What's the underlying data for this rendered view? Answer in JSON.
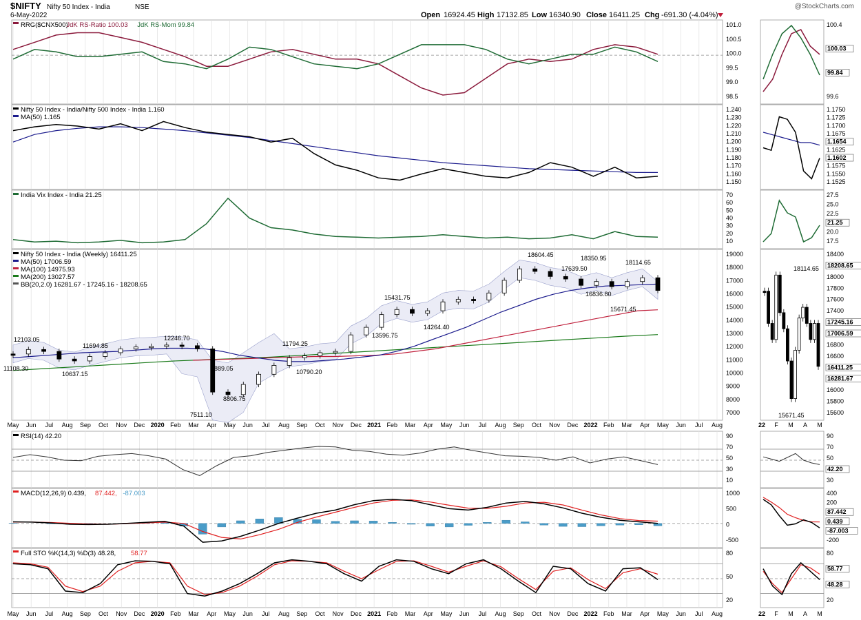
{
  "header": {
    "symbol": "$NIFTY",
    "name": "Nifty 50 Index - India",
    "exchange": "NSE",
    "date": "6-May-2022",
    "watermark": "@StockCharts.com",
    "open_label": "Open",
    "open": "16924.45",
    "high_label": "High",
    "high": "17132.85",
    "low_label": "Low",
    "low": "16340.90",
    "close_label": "Close",
    "close": "16411.25",
    "chg_label": "Chg",
    "chg": "-691.30 (-4.04%)"
  },
  "colors": {
    "price_up": "#000000",
    "ma50": "#1a1a8c",
    "ma100": "#c0203c",
    "ma200": "#1a7a1a",
    "bb": "#9aa0cc",
    "bb_fill": "#ebecf6",
    "rrg_ratio": "#8b1a3c",
    "rrg_mom": "#1e6b34",
    "vix": "#1e6b34",
    "rsi": "#333333",
    "macd_hist": "#4a9cc8",
    "signal": "#e02020"
  },
  "x_axis": {
    "main": [
      "May",
      "Jun",
      "Jul",
      "Aug",
      "Sep",
      "Oct",
      "Nov",
      "Dec",
      "2020",
      "Feb",
      "Mar",
      "Apr",
      "May",
      "Jun",
      "Jul",
      "Aug",
      "Sep",
      "Oct",
      "Nov",
      "Dec",
      "2021",
      "Feb",
      "Mar",
      "Apr",
      "May",
      "Jun",
      "Jul",
      "Aug",
      "Sep",
      "Oct",
      "Nov",
      "Dec",
      "2022",
      "Feb",
      "Mar",
      "Apr",
      "May",
      "Jun",
      "Jul",
      "Aug"
    ],
    "side": [
      "22",
      "F",
      "M",
      "A",
      "M"
    ]
  },
  "panels": {
    "rrg": {
      "legend": [
        "RRG($CNX500)",
        "JdK RS-Ratio 100.03",
        "JdK RS-Mom 99.84"
      ],
      "ticks": [
        "101.0",
        "100.5",
        "100.0",
        "99.5",
        "99.0",
        "98.5"
      ],
      "side_ticks": [
        "100.4",
        "100.03",
        "99.84",
        "99.6"
      ]
    },
    "ratio": {
      "legend": [
        "Nifty 50 Index - India/Nifty 500 Index - India 1.160",
        "MA(50) 1.165"
      ],
      "ticks": [
        "1.240",
        "1.230",
        "1.220",
        "1.210",
        "1.200",
        "1.190",
        "1.180",
        "1.170",
        "1.160",
        "1.150"
      ],
      "side_ticks": [
        "1.1750",
        "1.1725",
        "1.1700",
        "1.1675",
        "1.1654",
        "1.1625",
        "1.1602",
        "1.1575",
        "1.1550",
        "1.1525"
      ]
    },
    "vix": {
      "legend": [
        "India Vix Index - India 21.25"
      ],
      "ticks": [
        "70",
        "60",
        "50",
        "40",
        "30",
        "20",
        "10"
      ],
      "side_ticks": [
        "27.5",
        "25.0",
        "22.5",
        "21.25",
        "20.0",
        "17.5"
      ]
    },
    "price": {
      "legend": [
        "Nifty 50 Index - India (Weekly) 16411.25",
        "MA(50) 17006.59",
        "MA(100) 14975.93",
        "MA(200) 13027.57",
        "BB(20,2.0) 16281.67 - 17245.16 - 18208.65"
      ],
      "ticks": [
        "19000",
        "18000",
        "17000",
        "16000",
        "15000",
        "14000",
        "13000",
        "12000",
        "11000",
        "10000",
        "9000",
        "8000",
        "7000"
      ],
      "side_ticks": [
        "18400",
        "18208.65",
        "18000",
        "17800",
        "17600",
        "17400",
        "17245.16",
        "17006.59",
        "16800",
        "16600",
        "16411.25",
        "16281.67",
        "16000",
        "15800",
        "15600"
      ],
      "annotations": [
        "12103.05",
        "11108.30",
        "10637.15",
        "11694.85",
        "12246.70",
        "9889.05",
        "8806.75",
        "7511.10",
        "11794.25",
        "10790.20",
        "15431.75",
        "13596.75",
        "14264.40",
        "18604.45",
        "17639.50",
        "18350.95",
        "16836.80",
        "18114.65",
        "15671.45"
      ],
      "side_annotations": [
        "18114.65",
        "15671.45"
      ]
    },
    "rsi": {
      "legend": [
        "RSI(14) 42.20"
      ],
      "ticks": [
        "90",
        "70",
        "50",
        "30",
        "10"
      ],
      "side_ticks": [
        "90",
        "70",
        "50",
        "42.20",
        "30"
      ]
    },
    "macd": {
      "legend": [
        "MACD(12,26,9) 0.439,",
        "87.442,",
        "-87.003"
      ],
      "ticks": [
        "1000",
        "500",
        "0",
        "-500"
      ],
      "side_ticks": [
        "400",
        "200",
        "87.442",
        "0.439",
        "-87.003",
        "-200"
      ]
    },
    "sto": {
      "legend": [
        "Full STO %K(14,3) %D(3) 48.28,",
        "58.77"
      ],
      "ticks": [
        "80",
        "50",
        "20"
      ],
      "side_ticks": [
        "80",
        "58.77",
        "48.28",
        "20"
      ]
    }
  },
  "chart_data": [
    {
      "type": "line",
      "title": "RRG($CNX500)",
      "series": [
        {
          "name": "JdK RS-Ratio",
          "values": [
            100.3,
            100.6,
            100.9,
            101.0,
            101.0,
            100.8,
            100.6,
            100.3,
            100.0,
            99.6,
            99.6,
            99.9,
            100.2,
            100.3,
            100.1,
            99.9,
            99.9,
            99.7,
            99.2,
            98.7,
            98.4,
            98.5,
            99.1,
            99.7,
            99.9,
            99.8,
            99.9,
            100.3,
            100.5,
            100.4,
            100.1
          ]
        },
        {
          "name": "JdK RS-Mom",
          "values": [
            99.9,
            100.3,
            100.2,
            100.0,
            100.0,
            100.1,
            100.2,
            99.8,
            99.7,
            99.5,
            99.9,
            100.4,
            100.3,
            100.0,
            99.7,
            99.6,
            99.5,
            99.7,
            100.1,
            100.5,
            100.5,
            100.5,
            100.3,
            99.9,
            99.7,
            99.9,
            100.1,
            100.1,
            100.4,
            100.2,
            99.8
          ]
        }
      ]
    },
    {
      "type": "line",
      "title": "Nifty 50 Index - India/Nifty 500 Index - India",
      "series": [
        {
          "name": "Ratio",
          "values": [
            1.22,
            1.225,
            1.228,
            1.226,
            1.222,
            1.229,
            1.22,
            1.232,
            1.224,
            1.218,
            1.215,
            1.212,
            1.205,
            1.21,
            1.19,
            1.175,
            1.168,
            1.158,
            1.155,
            1.163,
            1.17,
            1.165,
            1.16,
            1.158,
            1.165,
            1.178,
            1.172,
            1.16,
            1.172,
            1.158,
            1.16
          ]
        },
        {
          "name": "MA(50)",
          "values": [
            1.205,
            1.215,
            1.22,
            1.223,
            1.225,
            1.225,
            1.224,
            1.222,
            1.22,
            1.217,
            1.214,
            1.211,
            1.207,
            1.203,
            1.199,
            1.195,
            1.191,
            1.187,
            1.184,
            1.181,
            1.178,
            1.176,
            1.174,
            1.172,
            1.17,
            1.169,
            1.168,
            1.167,
            1.166,
            1.165,
            1.165
          ]
        }
      ]
    },
    {
      "type": "line",
      "title": "India Vix Index - India",
      "series": [
        {
          "name": "India Vix",
          "values": [
            18,
            15,
            16,
            14,
            15,
            17,
            14,
            15,
            18,
            38,
            70,
            45,
            33,
            30,
            25,
            22,
            21,
            20,
            21,
            22,
            24,
            22,
            20,
            21,
            19,
            20,
            24,
            19,
            28,
            22,
            21
          ]
        }
      ]
    },
    {
      "type": "line",
      "title": "Nifty 50 Index - India (Weekly)",
      "ylim": [
        7000,
        19000
      ],
      "series": [
        {
          "name": "Close",
          "values": [
            11500,
            11850,
            11700,
            11100,
            10950,
            11300,
            11600,
            11900,
            12050,
            12100,
            12200,
            12150,
            11900,
            8500,
            8300,
            9100,
            9900,
            10600,
            11200,
            11350,
            11600,
            11700,
            13000,
            13600,
            14600,
            15000,
            14700,
            14900,
            15600,
            15800,
            15750,
            16300,
            17300,
            18200,
            18000,
            17600,
            17400,
            16900,
            17200,
            16800,
            17200,
            17500,
            16500
          ]
        },
        {
          "name": "MA(50)",
          "values": [
            11200,
            11300,
            11400,
            11500,
            11600,
            11650,
            11700,
            11800,
            11900,
            11950,
            11950,
            11900,
            11700,
            11400,
            11200,
            11000,
            10900,
            10900,
            11000,
            11100,
            11250,
            11400,
            11700,
            12100,
            12600,
            13100,
            13600,
            14200,
            14800,
            15300,
            15800,
            16200,
            16500,
            16700,
            16850,
            16900,
            16950,
            17000
          ]
        },
        {
          "name": "MA(100)",
          "values": [
            11000,
            11050,
            11100,
            11150,
            11200,
            11250,
            11300,
            11300,
            11350,
            11400,
            11500,
            11700,
            11900,
            12200,
            12500,
            12800,
            13100,
            13400,
            13700,
            14000,
            14300,
            14600,
            14900,
            14976
          ]
        },
        {
          "name": "MA(200)",
          "values": [
            10200,
            10350,
            10500,
            10650,
            10800,
            10950,
            11050,
            11150,
            11250,
            11400,
            11550,
            11700,
            11850,
            12000,
            12150,
            12300,
            12450,
            12600,
            12750,
            12900,
            13027
          ]
        }
      ]
    },
    {
      "type": "line",
      "title": "RSI(14)",
      "ylim": [
        10,
        90
      ],
      "series": [
        {
          "name": "RSI",
          "values": [
            55,
            60,
            56,
            50,
            49,
            57,
            60,
            62,
            58,
            52,
            33,
            22,
            40,
            55,
            58,
            64,
            68,
            72,
            75,
            74,
            68,
            66,
            61,
            59,
            63,
            70,
            74,
            68,
            63,
            58,
            57,
            55,
            50,
            56,
            45,
            52,
            56,
            49,
            42
          ]
        }
      ]
    },
    {
      "type": "bar",
      "title": "MACD(12,26,9)",
      "series": [
        {
          "name": "MACD",
          "values": [
            60,
            50,
            20,
            -30,
            -40,
            -30,
            0,
            40,
            80,
            -100,
            -700,
            -650,
            -480,
            -250,
            0,
            200,
            380,
            500,
            700,
            850,
            900,
            850,
            700,
            550,
            500,
            600,
            760,
            820,
            730,
            580,
            380,
            230,
            120,
            60,
            0
          ]
        },
        {
          "name": "Signal",
          "values": [
            50,
            50,
            35,
            5,
            -20,
            -30,
            -10,
            20,
            50,
            0,
            -300,
            -520,
            -580,
            -420,
            -220,
            40,
            240,
            420,
            600,
            760,
            860,
            880,
            800,
            680,
            570,
            560,
            640,
            760,
            790,
            690,
            500,
            320,
            180,
            110,
            87
          ]
        }
      ]
    },
    {
      "type": "line",
      "title": "Full STO %K(14,3) %D(3)",
      "ylim": [
        0,
        100
      ],
      "series": [
        {
          "name": "%K",
          "values": [
            80,
            78,
            70,
            25,
            22,
            40,
            78,
            86,
            85,
            80,
            20,
            15,
            25,
            40,
            60,
            82,
            88,
            85,
            80,
            60,
            45,
            75,
            88,
            85,
            70,
            60,
            80,
            88,
            70,
            45,
            22,
            75,
            70,
            40,
            25,
            70,
            72,
            48
          ]
        },
        {
          "name": "%D",
          "values": [
            82,
            80,
            73,
            35,
            24,
            35,
            65,
            82,
            85,
            82,
            35,
            18,
            22,
            35,
            55,
            78,
            86,
            85,
            82,
            65,
            50,
            68,
            85,
            86,
            75,
            63,
            75,
            86,
            74,
            50,
            28,
            65,
            72,
            48,
            30,
            62,
            70,
            59
          ]
        }
      ]
    }
  ]
}
